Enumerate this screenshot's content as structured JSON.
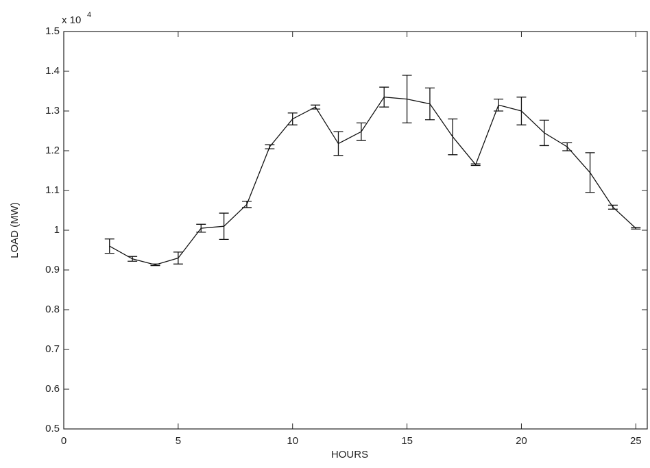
{
  "chart_data": {
    "type": "errorbar",
    "y_multiplier_base": "x 10",
    "y_multiplier_exponent": "4",
    "xlabel": "HOURS",
    "ylabel": "LOAD (MW)",
    "x": [
      2,
      3,
      4,
      5,
      6,
      7,
      8,
      9,
      10,
      11,
      12,
      13,
      14,
      15,
      16,
      17,
      18,
      19,
      20,
      21,
      22,
      23,
      24,
      25
    ],
    "values": [
      0.96,
      0.928,
      0.913,
      0.93,
      1.005,
      1.01,
      1.065,
      1.21,
      1.28,
      1.31,
      1.218,
      1.248,
      1.335,
      1.33,
      1.318,
      1.235,
      1.165,
      1.315,
      1.3,
      1.245,
      1.21,
      1.145,
      1.058,
      1.005
    ],
    "errors": [
      0.018,
      0.006,
      0.002,
      0.015,
      0.01,
      0.033,
      0.008,
      0.005,
      0.015,
      0.005,
      0.03,
      0.022,
      0.025,
      0.06,
      0.04,
      0.045,
      0.002,
      0.015,
      0.035,
      0.032,
      0.01,
      0.05,
      0.005,
      0.002
    ],
    "color": "#111111",
    "xlim": [
      0,
      25.5
    ],
    "xticks": [
      0,
      5,
      10,
      15,
      20,
      25
    ],
    "ylim": [
      0.5,
      1.5
    ],
    "yticks": [
      0.5,
      0.6,
      0.7,
      0.8,
      0.9,
      1,
      1.1,
      1.2,
      1.3,
      1.4,
      1.5
    ],
    "grid": false
  }
}
